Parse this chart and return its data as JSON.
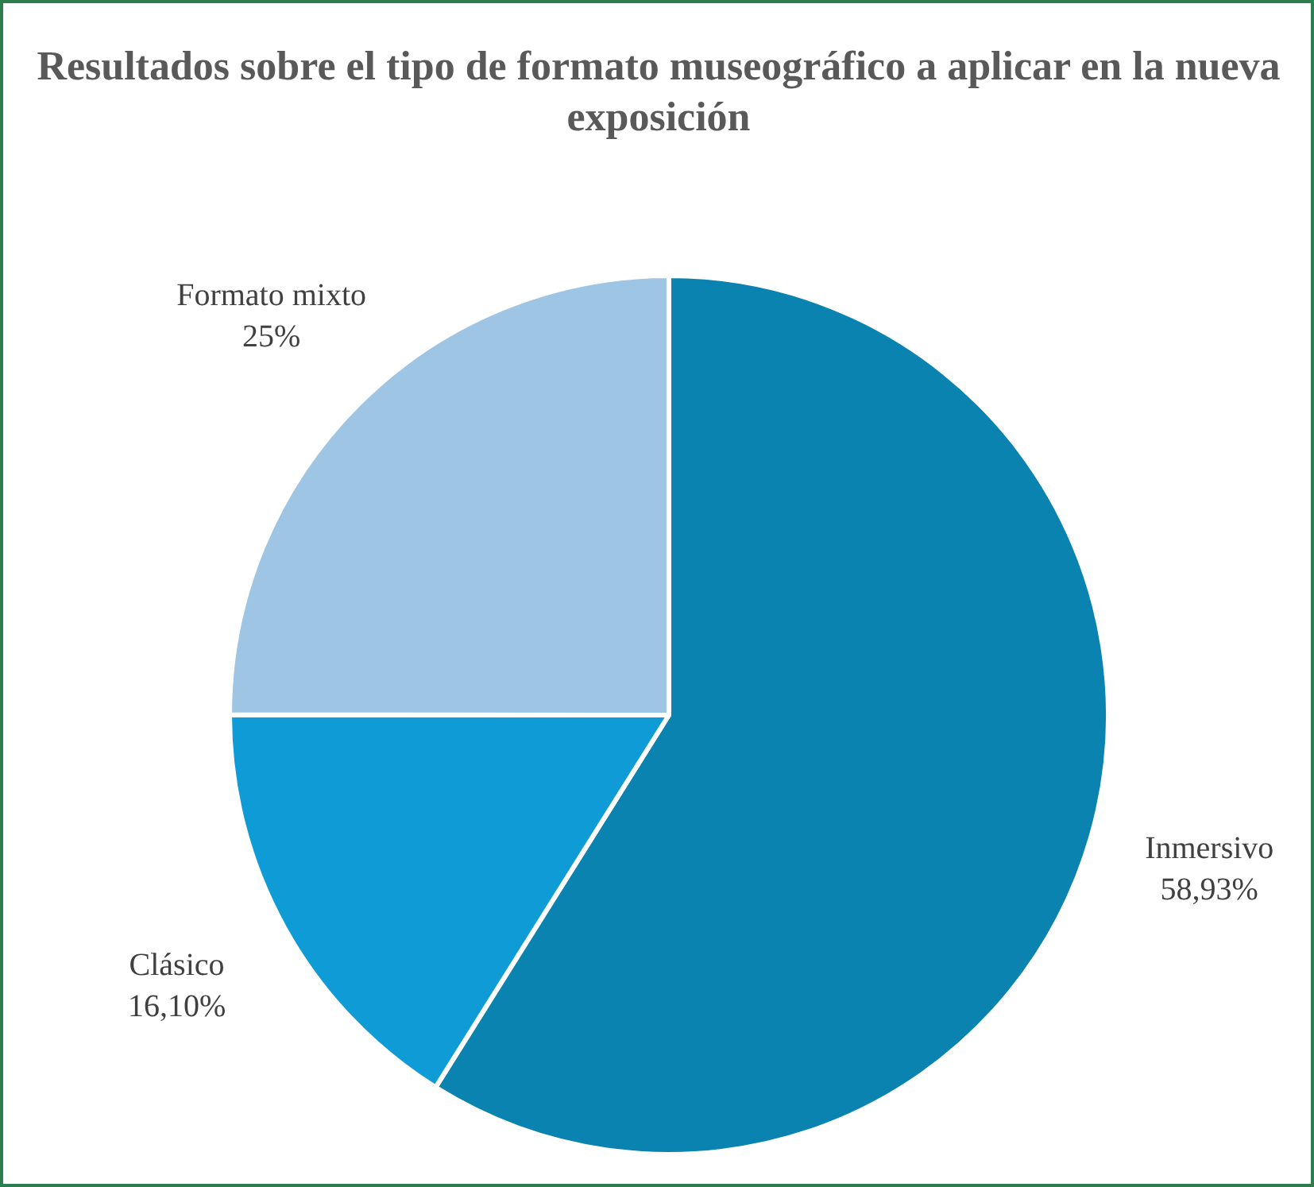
{
  "chart_data": {
    "type": "pie",
    "title": "Resultados sobre el tipo de formato museográfico a aplicar en la nueva exposición",
    "categories": [
      "Inmersivo",
      "Clásico",
      "Formato mixto"
    ],
    "values": [
      58.93,
      16.1,
      25
    ],
    "value_labels": [
      "58,93%",
      "16,10%",
      "25%"
    ],
    "colors": [
      "#0a83b0",
      "#0e9bd6",
      "#9fc5e5"
    ]
  }
}
